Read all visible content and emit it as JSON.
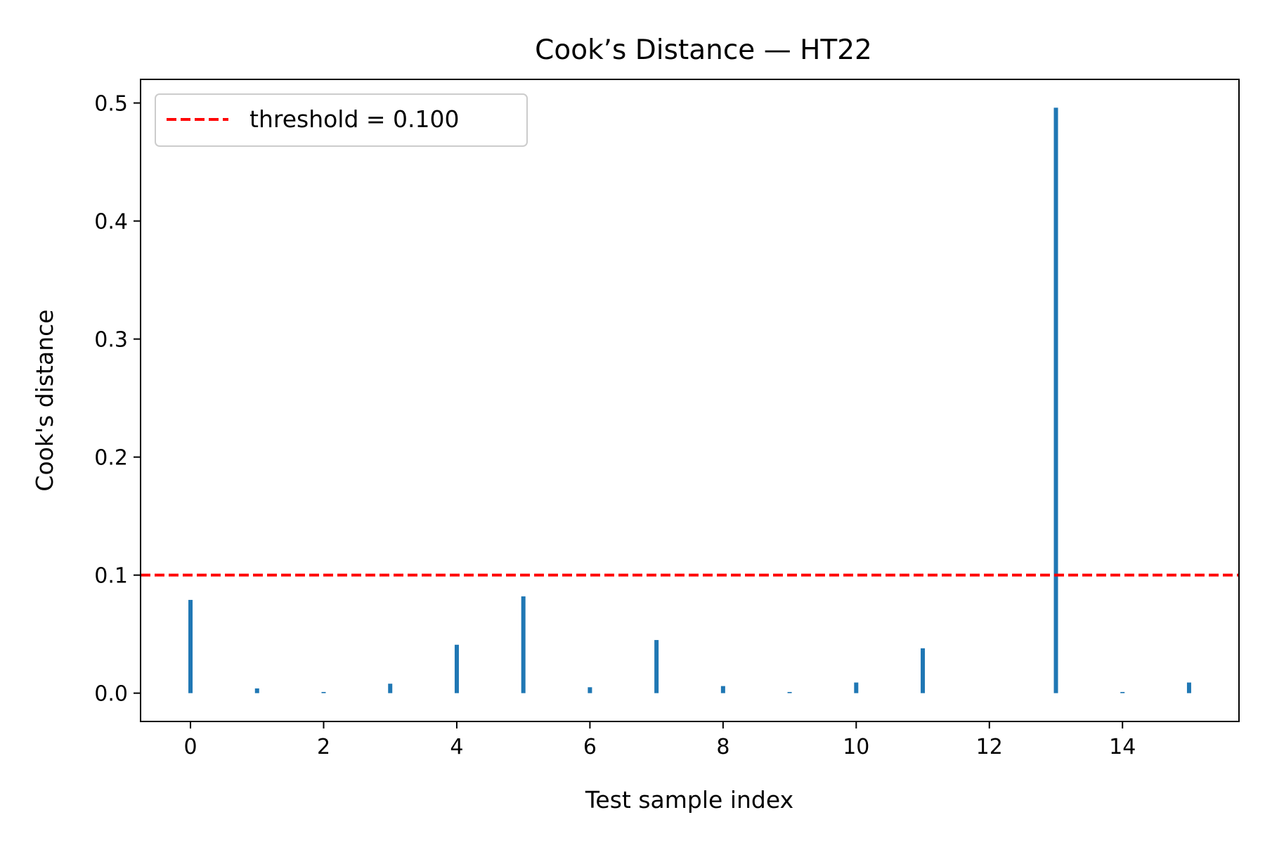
{
  "chart_data": {
    "type": "bar",
    "title": "Cook’s Distance — HT22",
    "xlabel": "Test sample index",
    "ylabel": "Cook's distance",
    "x": [
      0,
      1,
      2,
      3,
      4,
      5,
      6,
      7,
      8,
      9,
      10,
      11,
      12,
      13,
      14,
      15
    ],
    "values": [
      0.079,
      0.004,
      0.001,
      0.008,
      0.041,
      0.082,
      0.005,
      0.045,
      0.006,
      0.001,
      0.009,
      0.038,
      0.0,
      0.496,
      0.001,
      0.009
    ],
    "xlim": [
      -0.75,
      15.75
    ],
    "ylim": [
      -0.024,
      0.52
    ],
    "xticks": [
      0,
      2,
      4,
      6,
      8,
      10,
      12,
      14
    ],
    "xtick_labels": [
      "0",
      "2",
      "4",
      "6",
      "8",
      "10",
      "12",
      "14"
    ],
    "yticks": [
      0.0,
      0.1,
      0.2,
      0.3,
      0.4,
      0.5
    ],
    "ytick_labels": [
      "0.0",
      "0.1",
      "0.2",
      "0.3",
      "0.4",
      "0.5"
    ],
    "threshold": {
      "value": 0.1,
      "label": "threshold = 0.100",
      "color": "#ff0000",
      "style": "dashed"
    },
    "bar_color": "#1f77b4",
    "grid": false,
    "legend": {
      "placement": "top-left",
      "entries": [
        "threshold = 0.100"
      ]
    }
  }
}
